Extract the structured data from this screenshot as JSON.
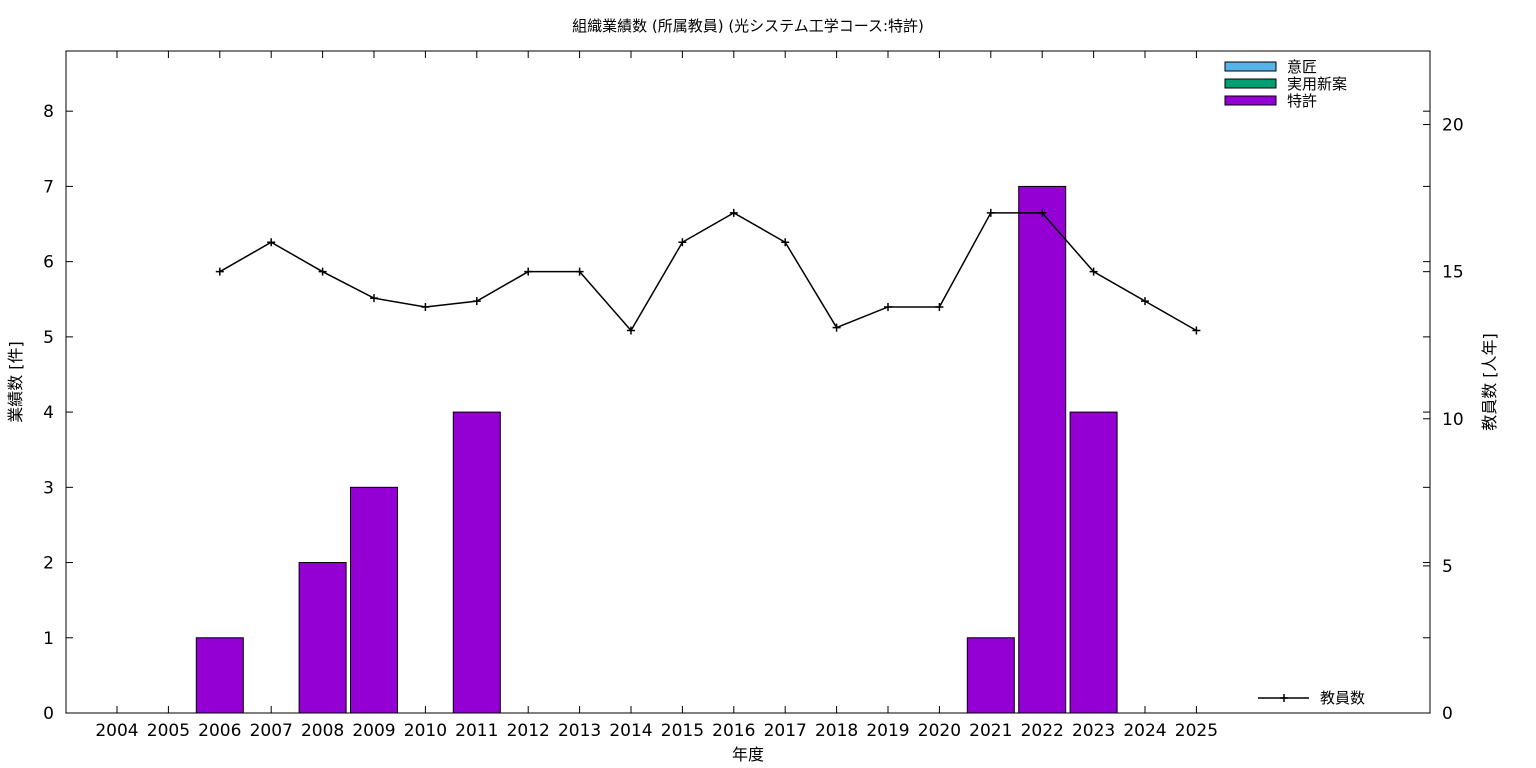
{
  "chart_data": {
    "type": "bar",
    "title": "組織業績数 (所属教員) (光システム工学コース:特許)",
    "xlabel": "年度",
    "ylabel": "業績数 [件]",
    "y2label": "教員数 [人年]",
    "categories": [
      "2004",
      "2005",
      "2006",
      "2007",
      "2008",
      "2009",
      "2010",
      "2011",
      "2012",
      "2013",
      "2014",
      "2015",
      "2016",
      "2017",
      "2018",
      "2019",
      "2020",
      "2021",
      "2022",
      "2023",
      "2024",
      "2025"
    ],
    "ylim": [
      0,
      8.8
    ],
    "yticks": [
      0,
      1,
      2,
      3,
      4,
      5,
      6,
      7,
      8
    ],
    "y2lim": [
      0,
      22.5
    ],
    "y2ticks": [
      0,
      5,
      10,
      15,
      20
    ],
    "grid": false,
    "legend_position": "top-right",
    "series": [
      {
        "name": "意匠",
        "type": "bar",
        "axis": "left",
        "color": "#56b4e9",
        "values": [
          0,
          0,
          0,
          0,
          0,
          0,
          0,
          0,
          0,
          0,
          0,
          0,
          0,
          0,
          0,
          0,
          0,
          0,
          0,
          0,
          0,
          0
        ]
      },
      {
        "name": "実用新案",
        "type": "bar",
        "axis": "left",
        "color": "#009e73",
        "values": [
          0,
          0,
          0,
          0,
          0,
          0,
          0,
          0,
          0,
          0,
          0,
          0,
          0,
          0,
          0,
          0,
          0,
          0,
          0,
          0,
          0,
          0
        ]
      },
      {
        "name": "特許",
        "type": "bar",
        "axis": "left",
        "color": "#9400d3",
        "values": [
          0,
          0,
          1,
          0,
          2,
          3,
          0,
          4,
          0,
          0,
          0,
          0,
          0,
          0,
          0,
          0,
          0,
          1,
          7,
          4,
          0,
          0
        ]
      },
      {
        "name": "教員数",
        "type": "line",
        "axis": "right",
        "color": "#000000",
        "values": [
          null,
          null,
          15,
          16,
          15,
          14.1,
          13.8,
          14,
          15,
          15,
          13,
          16,
          17,
          16,
          13.1,
          13.8,
          13.8,
          17,
          17,
          15,
          14,
          13
        ]
      }
    ]
  }
}
